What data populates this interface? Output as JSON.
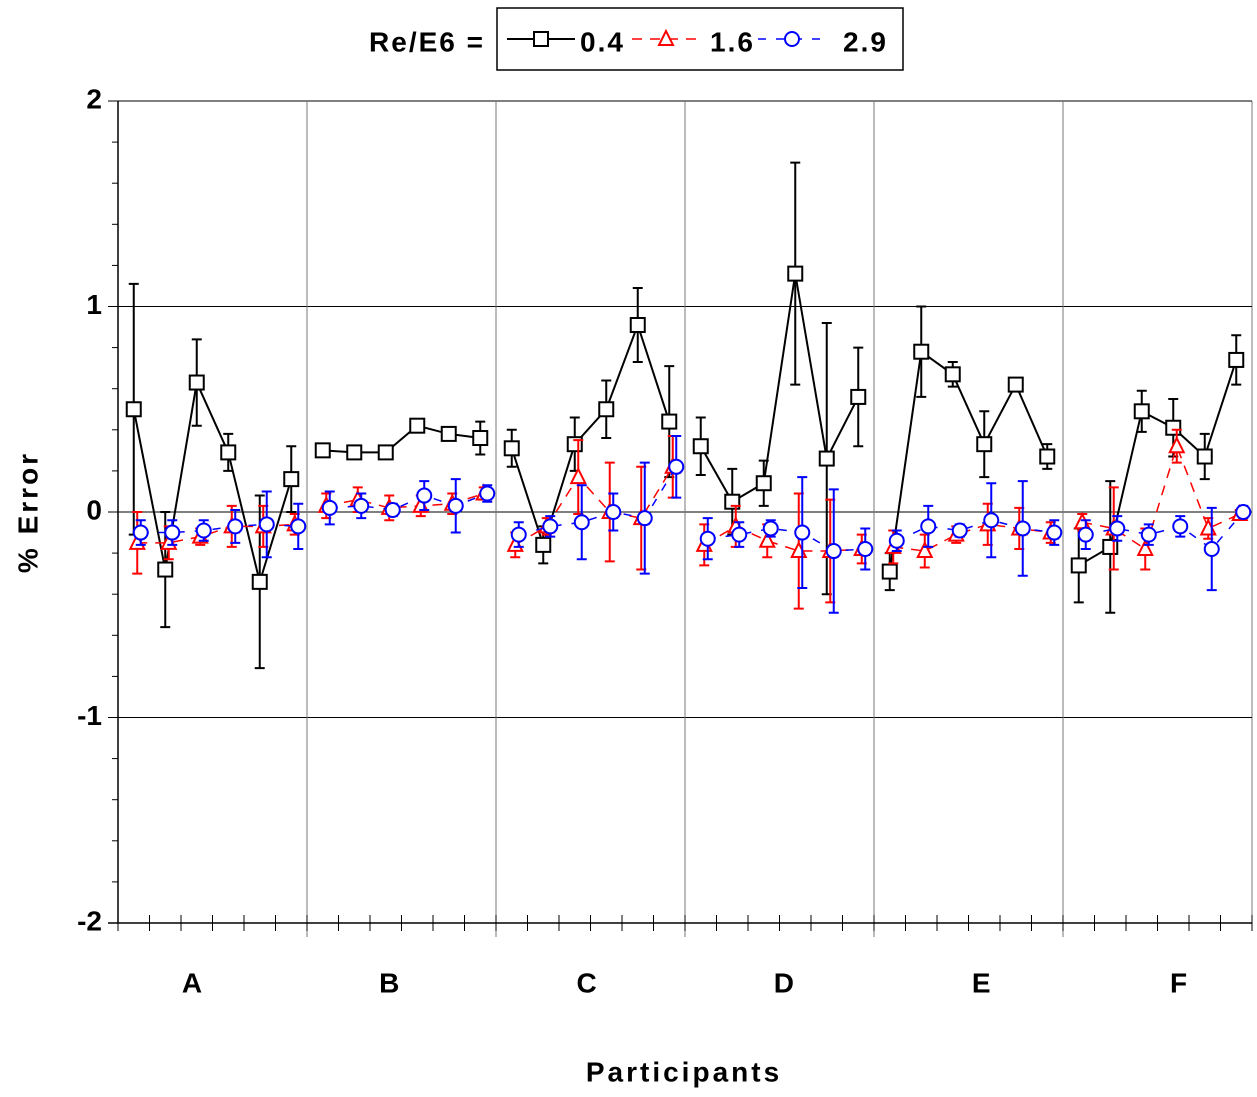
{
  "chart_data": {
    "type": "line",
    "legend_title": "Re/E6 =",
    "x_label": "Participants",
    "y_label": "% Error",
    "categories": [
      "A",
      "B",
      "C",
      "D",
      "E",
      "F"
    ],
    "x": [
      1,
      2,
      3,
      4,
      5,
      6,
      7,
      8,
      9,
      10,
      11,
      12,
      13,
      14,
      15,
      16,
      17,
      18,
      19,
      20,
      21,
      22,
      23,
      24,
      25,
      26,
      27,
      28,
      29,
      30,
      31,
      32,
      33,
      34,
      35,
      36
    ],
    "xlim": [
      0.5,
      36.5
    ],
    "ylim": [
      -2,
      2
    ],
    "yticks": [
      -2,
      -1,
      0,
      1,
      2
    ],
    "grid": true,
    "series": [
      {
        "name": "0.4",
        "color": "#000000",
        "marker": "square",
        "values": [
          0.5,
          -0.28,
          0.63,
          0.29,
          -0.34,
          0.16,
          0.3,
          0.29,
          0.29,
          0.42,
          0.38,
          0.36,
          0.31,
          -0.16,
          0.33,
          0.5,
          0.91,
          0.44,
          0.32,
          0.05,
          0.14,
          1.16,
          0.26,
          0.56,
          -0.29,
          0.78,
          0.67,
          0.33,
          0.62,
          0.27,
          -0.26,
          -0.17,
          0.49,
          0.41,
          0.27,
          0.74
        ],
        "errors": [
          0.61,
          0.28,
          0.21,
          0.09,
          0.42,
          0.16,
          0.02,
          0.02,
          0.03,
          0.03,
          0.03,
          0.08,
          0.09,
          0.09,
          0.13,
          0.14,
          0.18,
          0.27,
          0.14,
          0.16,
          0.11,
          0.54,
          0.66,
          0.24,
          0.09,
          0.22,
          0.06,
          0.16,
          0.03,
          0.06,
          0.18,
          0.32,
          0.1,
          0.14,
          0.11,
          0.12
        ]
      },
      {
        "name": "1.6",
        "color": "#ff0000",
        "marker": "triangle",
        "values": [
          -0.15,
          -0.15,
          -0.12,
          -0.07,
          -0.07,
          -0.06,
          0.03,
          0.06,
          0.02,
          0.03,
          0.04,
          0.09,
          -0.16,
          -0.07,
          0.17,
          0.0,
          -0.03,
          0.22,
          -0.16,
          -0.07,
          -0.14,
          -0.19,
          -0.19,
          -0.18,
          -0.17,
          -0.19,
          -0.11,
          -0.06,
          -0.08,
          -0.1,
          -0.05,
          -0.08,
          -0.18,
          0.32,
          -0.08,
          -0.01
        ],
        "errors": [
          0.15,
          0.08,
          0.04,
          0.1,
          0.1,
          0.05,
          0.06,
          0.06,
          0.06,
          0.05,
          0.05,
          0.03,
          0.06,
          0.04,
          0.18,
          0.24,
          0.25,
          0.15,
          0.1,
          0.1,
          0.08,
          0.28,
          0.25,
          0.07,
          0.08,
          0.08,
          0.04,
          0.1,
          0.1,
          0.05,
          0.04,
          0.2,
          0.1,
          0.08,
          0.05,
          0.02
        ]
      },
      {
        "name": "2.9",
        "color": "#0000ff",
        "marker": "circle",
        "values": [
          -0.1,
          -0.1,
          -0.09,
          -0.07,
          -0.06,
          -0.07,
          0.02,
          0.03,
          0.01,
          0.08,
          0.03,
          0.09,
          -0.11,
          -0.07,
          -0.05,
          0.0,
          -0.03,
          0.22,
          -0.13,
          -0.11,
          -0.08,
          -0.1,
          -0.19,
          -0.18,
          -0.14,
          -0.07,
          -0.09,
          -0.04,
          -0.08,
          -0.1,
          -0.11,
          -0.08,
          -0.11,
          -0.07,
          -0.18,
          0.0
        ],
        "errors": [
          0.06,
          0.06,
          0.05,
          0.08,
          0.16,
          0.11,
          0.08,
          0.06,
          0.03,
          0.07,
          0.13,
          0.04,
          0.06,
          0.05,
          0.18,
          0.09,
          0.27,
          0.15,
          0.1,
          0.06,
          0.04,
          0.27,
          0.3,
          0.1,
          0.05,
          0.1,
          0.03,
          0.18,
          0.23,
          0.06,
          0.07,
          0.06,
          0.05,
          0.05,
          0.2,
          0.03
        ]
      }
    ]
  }
}
